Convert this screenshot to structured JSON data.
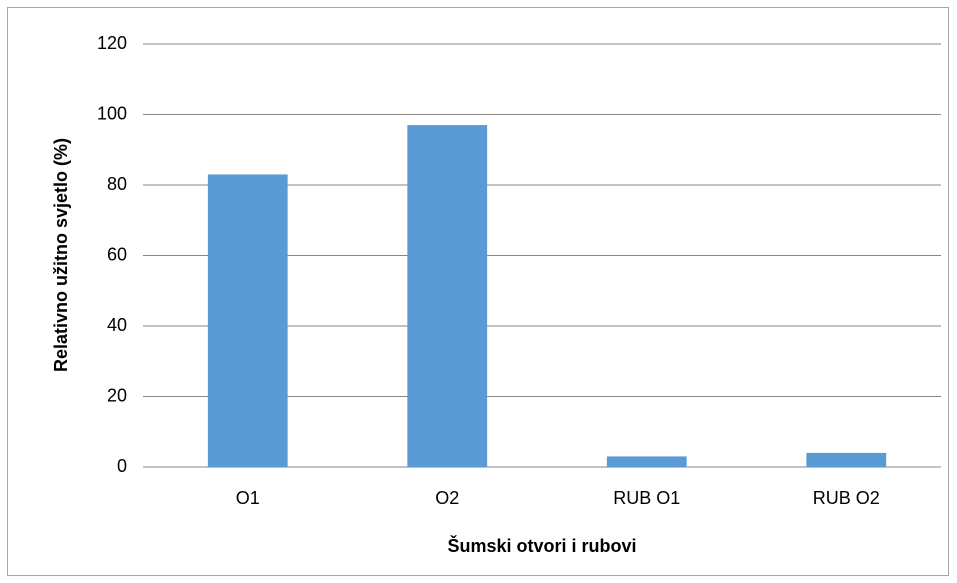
{
  "chart_data": {
    "type": "bar",
    "x_label": "Šumski otvori i rubovi",
    "y_label": "Relativno užitno svjetlo (%)",
    "categories": [
      "O1",
      "O2",
      "RUB O1",
      "RUB O2"
    ],
    "values": [
      83,
      97,
      3,
      4
    ],
    "color": "#5b9bd5",
    "ylim": [
      0,
      120
    ],
    "yticks": [
      0,
      20,
      40,
      60,
      80,
      100,
      120
    ],
    "grid": true
  }
}
